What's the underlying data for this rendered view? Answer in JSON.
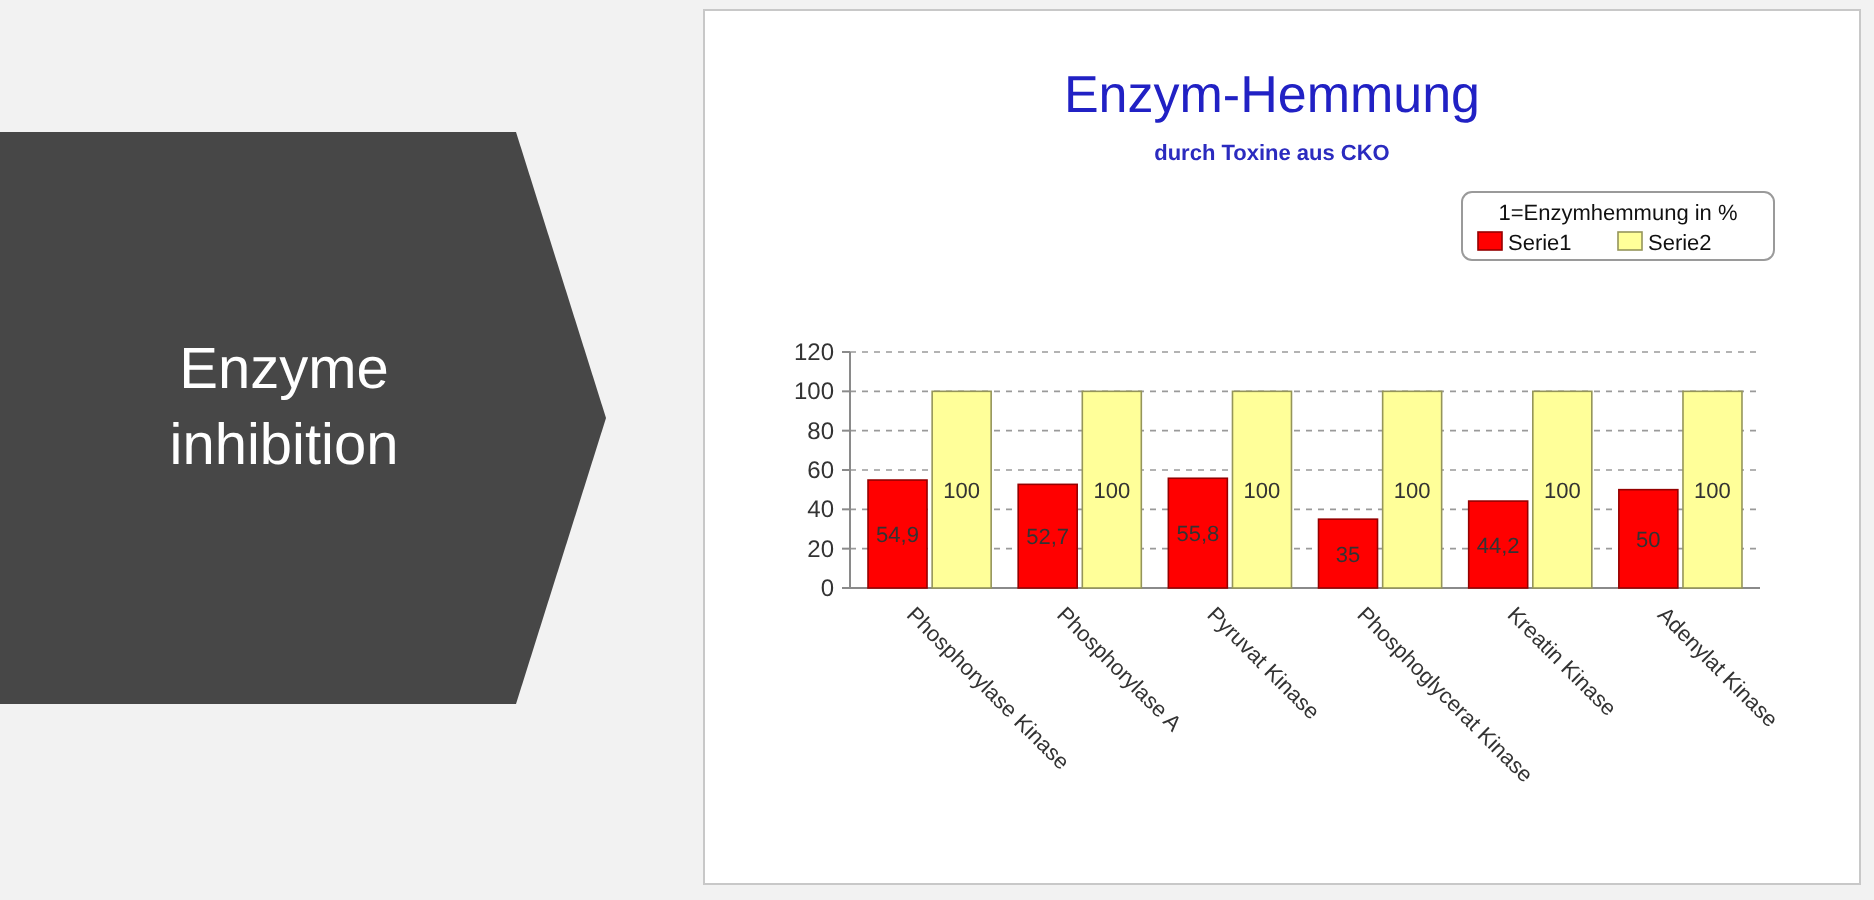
{
  "chart_data": {
    "type": "bar",
    "title": "Enzym-Hemmung",
    "subtitle": "durch Toxine aus CKO",
    "legend_title": "1=Enzymhemmung in %",
    "annotations": [
      "Enzyme inhibition"
    ],
    "categories": [
      "Phosphorylase Kinase",
      "Phosphorylase A",
      "Pyruvat Kinase",
      "Phosphoglycerat Kinase",
      "Kreatin Kinase",
      "Adenylat Kinase"
    ],
    "series": [
      {
        "name": "Serie1",
        "color": "#ff0000",
        "values": [
          54.9,
          52.7,
          55.8,
          35,
          44.2,
          50
        ],
        "value_labels": [
          "54,9",
          "52,7",
          "55,8",
          "35",
          "44,2",
          "50"
        ]
      },
      {
        "name": "Serie2",
        "color": "#ffff99",
        "values": [
          100,
          100,
          100,
          100,
          100,
          100
        ],
        "value_labels": [
          "100",
          "100",
          "100",
          "100",
          "100",
          "100"
        ]
      }
    ],
    "ylim": [
      0,
      120
    ],
    "yticks": [
      0,
      20,
      40,
      60,
      80,
      100,
      120
    ],
    "grid": "y",
    "legend": "top right"
  }
}
